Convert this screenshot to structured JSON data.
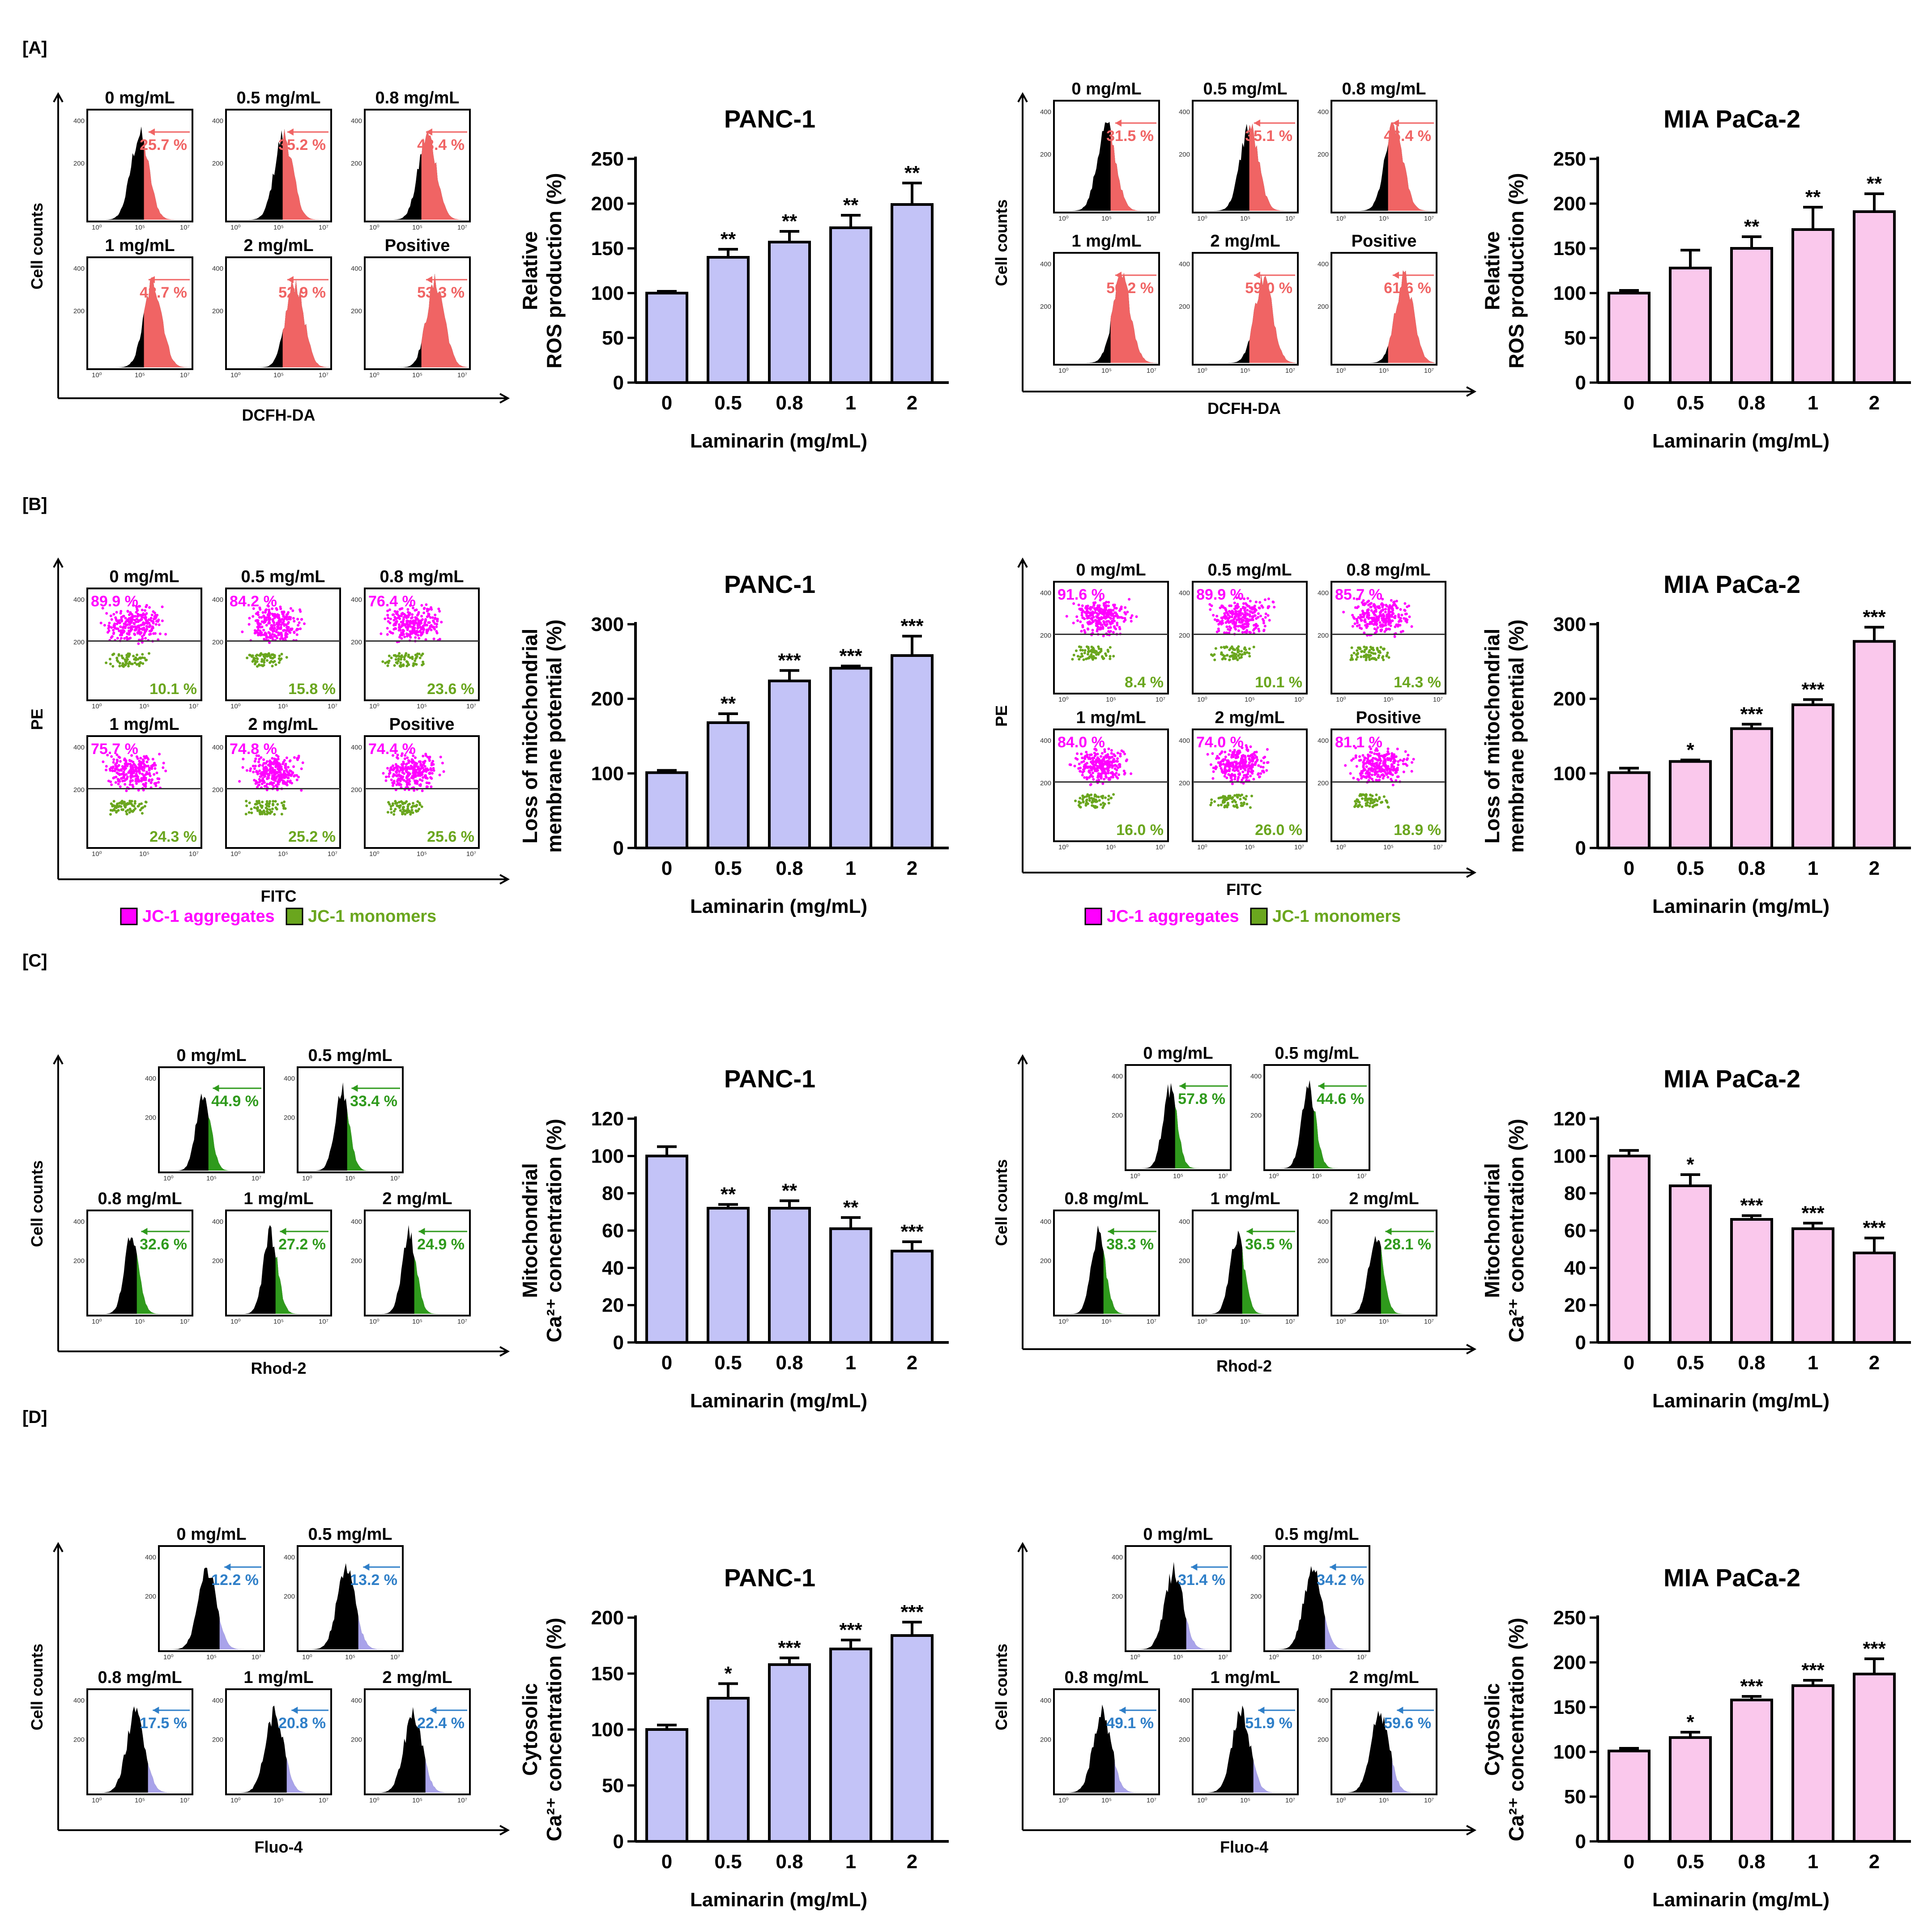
{
  "colors": {
    "panc": "#c3c3f7",
    "mia": "#fac8ec",
    "ros": "#f06464",
    "jc_agg": "#ff00ff",
    "jc_mono": "#6aa61e",
    "rhod": "#2f9a1c",
    "fluo": "#2f7fc8",
    "fluo_fill": "#a9a3ea"
  },
  "sections": [
    {
      "label": "[A]",
      "flow": [
        {
          "style": "ros",
          "layout": "3x2",
          "ylabel": "Cell counts",
          "xlabel": "DCFH-DA",
          "panels": [
            {
              "title": "0 mg/mL",
              "pcts": [
                "25.7 %"
              ],
              "shift": 0.0
            },
            {
              "title": "0.5 mg/mL",
              "pcts": [
                "35.2 %"
              ],
              "shift": 0.05
            },
            {
              "title": "0.8 mg/mL",
              "pcts": [
                "43.4 %"
              ],
              "shift": 0.1
            },
            {
              "title": "1 mg/mL",
              "pcts": [
                "48.7 %"
              ],
              "shift": 0.13
            },
            {
              "title": "2 mg/mL",
              "pcts": [
                "52.9 %"
              ],
              "shift": 0.16
            },
            {
              "title": "Positive",
              "pcts": [
                "53.3 %"
              ],
              "shift": 0.18
            }
          ]
        },
        {
          "style": "ros",
          "layout": "3x2",
          "ylabel": "Cell counts",
          "xlabel": "DCFH-DA",
          "panels": [
            {
              "title": "0 mg/mL",
              "pcts": [
                "31.5 %"
              ],
              "shift": 0.0
            },
            {
              "title": "0.5 mg/mL",
              "pcts": [
                "35.1 %"
              ],
              "shift": 0.04
            },
            {
              "title": "0.8 mg/mL",
              "pcts": [
                "46.4 %"
              ],
              "shift": 0.1
            },
            {
              "title": "1 mg/mL",
              "pcts": [
                "56.2 %"
              ],
              "shift": 0.15
            },
            {
              "title": "2 mg/mL",
              "pcts": [
                "59.0 %"
              ],
              "shift": 0.18
            },
            {
              "title": "Positive",
              "pcts": [
                "61.6 %"
              ],
              "shift": 0.2
            }
          ]
        }
      ]
    },
    {
      "label": "[B]",
      "flow": [
        {
          "style": "jc",
          "layout": "3x2",
          "ylabel": "PE",
          "xlabel": "FITC",
          "panels": [
            {
              "title": "0 mg/mL",
              "pcts": [
                "89.9 %",
                "10.1 %"
              ],
              "shift": 0.0
            },
            {
              "title": "0.5 mg/mL",
              "pcts": [
                "84.2 %",
                "15.8 %"
              ],
              "shift": 0.0
            },
            {
              "title": "0.8 mg/mL",
              "pcts": [
                "76.4 %",
                "23.6 %"
              ],
              "shift": 0.0
            },
            {
              "title": "1 mg/mL",
              "pcts": [
                "75.7 %",
                "24.3 %"
              ],
              "shift": 0.0
            },
            {
              "title": "2 mg/mL",
              "pcts": [
                "74.8 %",
                "25.2 %"
              ],
              "shift": 0.0
            },
            {
              "title": "Positive",
              "pcts": [
                "74.4 %",
                "25.6 %"
              ],
              "shift": 0.0
            }
          ]
        },
        {
          "style": "jc",
          "layout": "3x2",
          "ylabel": "PE",
          "xlabel": "FITC",
          "panels": [
            {
              "title": "0 mg/mL",
              "pcts": [
                "91.6 %",
                "8.4 %"
              ],
              "shift": 0.0
            },
            {
              "title": "0.5 mg/mL",
              "pcts": [
                "89.9 %",
                "10.1 %"
              ],
              "shift": 0.0
            },
            {
              "title": "0.8 mg/mL",
              "pcts": [
                "85.7 %",
                "14.3 %"
              ],
              "shift": 0.0
            },
            {
              "title": "1 mg/mL",
              "pcts": [
                "84.0 %",
                "16.0 %"
              ],
              "shift": 0.0
            },
            {
              "title": "2 mg/mL",
              "pcts": [
                "74.0 %",
                "26.0 %"
              ],
              "shift": 0.0
            },
            {
              "title": "Positive",
              "pcts": [
                "81.1 %",
                "18.9 %"
              ],
              "shift": 0.0
            }
          ]
        }
      ],
      "legend": {
        "aggregates": "JC-1 aggregates",
        "monomers": "JC-1 monomers"
      }
    },
    {
      "label": "[C]",
      "flow": [
        {
          "style": "rhod",
          "layout": "2x3",
          "ylabel": "Cell counts",
          "xlabel": "Rhod-2",
          "panels": [
            {
              "title": "0 mg/mL",
              "pcts": [
                "44.9 %"
              ],
              "shift": 0.0
            },
            {
              "title": "0.5 mg/mL",
              "pcts": [
                "33.4 %"
              ],
              "shift": 0.0
            },
            {
              "title": "0.8 mg/mL",
              "pcts": [
                "32.6 %"
              ],
              "shift": 0.0
            },
            {
              "title": "1 mg/mL",
              "pcts": [
                "27.2 %"
              ],
              "shift": 0.0
            },
            {
              "title": "2 mg/mL",
              "pcts": [
                "24.9 %"
              ],
              "shift": 0.0
            }
          ]
        },
        {
          "style": "rhod",
          "layout": "2x3",
          "ylabel": "Cell counts",
          "xlabel": "Rhod-2",
          "panels": [
            {
              "title": "0 mg/mL",
              "pcts": [
                "57.8 %"
              ],
              "shift": 0.0
            },
            {
              "title": "0.5 mg/mL",
              "pcts": [
                "44.6 %"
              ],
              "shift": 0.0
            },
            {
              "title": "0.8 mg/mL",
              "pcts": [
                "38.3 %"
              ],
              "shift": 0.0
            },
            {
              "title": "1 mg/mL",
              "pcts": [
                "36.5 %"
              ],
              "shift": 0.0
            },
            {
              "title": "2 mg/mL",
              "pcts": [
                "28.1 %"
              ],
              "shift": 0.0
            }
          ]
        }
      ]
    },
    {
      "label": "[D]",
      "flow": [
        {
          "style": "fluo",
          "layout": "2x3",
          "ylabel": "Cell counts",
          "xlabel": "Fluo-4",
          "panels": [
            {
              "title": "0 mg/mL",
              "pcts": [
                "12.2 %"
              ],
              "shift": 0.0
            },
            {
              "title": "0.5 mg/mL",
              "pcts": [
                "13.2 %"
              ],
              "shift": 0.0
            },
            {
              "title": "0.8 mg/mL",
              "pcts": [
                "17.5 %"
              ],
              "shift": 0.0
            },
            {
              "title": "1 mg/mL",
              "pcts": [
                "20.8 %"
              ],
              "shift": 0.0
            },
            {
              "title": "2 mg/mL",
              "pcts": [
                "22.4 %"
              ],
              "shift": 0.0
            }
          ]
        },
        {
          "style": "fluo",
          "layout": "2x3",
          "ylabel": "Cell counts",
          "xlabel": "Fluo-4",
          "panels": [
            {
              "title": "0 mg/mL",
              "pcts": [
                "31.4 %"
              ],
              "shift": 0.0
            },
            {
              "title": "0.5 mg/mL",
              "pcts": [
                "34.2 %"
              ],
              "shift": 0.0
            },
            {
              "title": "0.8 mg/mL",
              "pcts": [
                "49.1 %"
              ],
              "shift": 0.0
            },
            {
              "title": "1 mg/mL",
              "pcts": [
                "51.9 %"
              ],
              "shift": 0.0
            },
            {
              "title": "2 mg/mL",
              "pcts": [
                "59.6 %"
              ],
              "shift": 0.0
            }
          ]
        }
      ]
    }
  ],
  "chart_data": [
    {
      "type": "bar",
      "section": "A",
      "title": "PANC-1",
      "ylabel": [
        "Relative",
        "ROS production  (%)"
      ],
      "xlabel": "Laminarin (mg/mL)",
      "categories": [
        "0",
        "0.5",
        "0.8",
        "1",
        "2"
      ],
      "values": [
        100,
        140,
        157,
        173,
        199
      ],
      "errors": [
        2,
        9,
        12,
        14,
        24
      ],
      "significance": [
        "",
        "**",
        "**",
        "**",
        "**"
      ],
      "ylim": [
        0,
        250
      ],
      "yticks": [
        0,
        50,
        100,
        150,
        200,
        250
      ],
      "color": "panc"
    },
    {
      "type": "bar",
      "section": "A",
      "title": "MIA PaCa-2",
      "ylabel": [
        "Relative",
        "ROS production  (%)"
      ],
      "xlabel": "Laminarin (mg/mL)",
      "categories": [
        "0",
        "0.5",
        "0.8",
        "1",
        "2"
      ],
      "values": [
        100,
        128,
        150,
        171,
        191
      ],
      "errors": [
        3,
        20,
        13,
        25,
        20
      ],
      "significance": [
        "",
        "",
        "**",
        "**",
        "**"
      ],
      "ylim": [
        0,
        250
      ],
      "yticks": [
        0,
        50,
        100,
        150,
        200,
        250
      ],
      "color": "mia"
    },
    {
      "type": "bar",
      "section": "B",
      "title": "PANC-1",
      "ylabel": [
        "Loss of mitochondrial",
        "membrane potential  (%)"
      ],
      "xlabel": "Laminarin (mg/mL)",
      "categories": [
        "0",
        "0.5",
        "0.8",
        "1",
        "2"
      ],
      "values": [
        101,
        168,
        224,
        241,
        258
      ],
      "errors": [
        3,
        12,
        14,
        3,
        26
      ],
      "significance": [
        "",
        "**",
        "***",
        "***",
        "***"
      ],
      "ylim": [
        0,
        300
      ],
      "yticks": [
        0,
        100,
        200,
        300
      ],
      "color": "panc"
    },
    {
      "type": "bar",
      "section": "B",
      "title": "MIA PaCa-2",
      "ylabel": [
        "Loss of mitochondrial",
        "membrane potential  (%)"
      ],
      "xlabel": "Laminarin (mg/mL)",
      "categories": [
        "0",
        "0.5",
        "0.8",
        "1",
        "2"
      ],
      "values": [
        101,
        116,
        160,
        192,
        277
      ],
      "errors": [
        6,
        2,
        6,
        7,
        19
      ],
      "significance": [
        "",
        "*",
        "***",
        "***",
        "***"
      ],
      "ylim": [
        0,
        300
      ],
      "yticks": [
        0,
        100,
        200,
        300
      ],
      "color": "mia"
    },
    {
      "type": "bar",
      "section": "C",
      "title": "PANC-1",
      "ylabel": [
        "Mitochondrial",
        "Ca²⁺ concentration  (%)"
      ],
      "xlabel": "Laminarin (mg/mL)",
      "categories": [
        "0",
        "0.5",
        "0.8",
        "1",
        "2"
      ],
      "values": [
        100,
        72,
        72,
        61,
        49
      ],
      "errors": [
        5,
        2,
        4,
        6,
        5
      ],
      "significance": [
        "",
        "**",
        "**",
        "**",
        "***"
      ],
      "ylim": [
        0,
        120
      ],
      "yticks": [
        0,
        20,
        40,
        60,
        80,
        100,
        120
      ],
      "color": "panc"
    },
    {
      "type": "bar",
      "section": "C",
      "title": "MIA PaCa-2",
      "ylabel": [
        "Mitochondrial",
        "Ca²⁺ concentration  (%)"
      ],
      "xlabel": "Laminarin (mg/mL)",
      "categories": [
        "0",
        "0.5",
        "0.8",
        "1",
        "2"
      ],
      "values": [
        100,
        84,
        66,
        61,
        48
      ],
      "errors": [
        3,
        6,
        2,
        3,
        8
      ],
      "significance": [
        "",
        "*",
        "***",
        "***",
        "***"
      ],
      "ylim": [
        0,
        120
      ],
      "yticks": [
        0,
        20,
        40,
        60,
        80,
        100,
        120
      ],
      "color": "mia"
    },
    {
      "type": "bar",
      "section": "D",
      "title": "PANC-1",
      "ylabel": [
        "Cytosolic",
        "Ca²⁺ concentration  (%)"
      ],
      "xlabel": "Laminarin (mg/mL)",
      "categories": [
        "0",
        "0.5",
        "0.8",
        "1",
        "2"
      ],
      "values": [
        100,
        128,
        158,
        172,
        184
      ],
      "errors": [
        4,
        13,
        6,
        8,
        12
      ],
      "significance": [
        "",
        "*",
        "***",
        "***",
        "***"
      ],
      "ylim": [
        0,
        200
      ],
      "yticks": [
        0,
        50,
        100,
        150,
        200
      ],
      "color": "panc"
    },
    {
      "type": "bar",
      "section": "D",
      "title": "MIA PaCa-2",
      "ylabel": [
        "Cytosolic",
        "Ca²⁺ concentration  (%)"
      ],
      "xlabel": "Laminarin (mg/mL)",
      "categories": [
        "0",
        "0.5",
        "0.8",
        "1",
        "2"
      ],
      "values": [
        101,
        116,
        158,
        174,
        187
      ],
      "errors": [
        3,
        6,
        4,
        6,
        17
      ],
      "significance": [
        "",
        "*",
        "***",
        "***",
        "***"
      ],
      "ylim": [
        0,
        250
      ],
      "yticks": [
        0,
        50,
        100,
        150,
        200,
        250
      ],
      "color": "mia"
    }
  ]
}
